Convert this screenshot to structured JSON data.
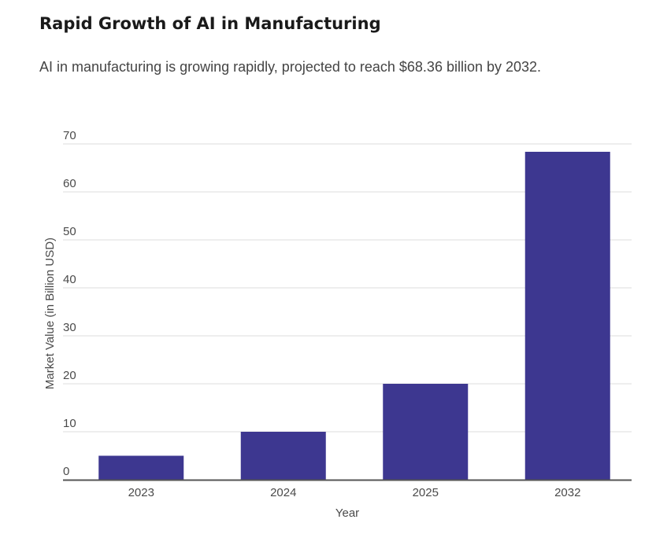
{
  "header": {
    "title": "Rapid Growth of AI in Manufacturing",
    "subtitle": "AI in manufacturing is growing rapidly, projected to reach $68.36 billion by 2032."
  },
  "chart_data": {
    "type": "bar",
    "title": "Rapid Growth of AI in Manufacturing",
    "subtitle": "AI in manufacturing is growing rapidly, projected to reach $68.36 billion by 2032.",
    "categories": [
      "2023",
      "2024",
      "2025",
      "2032"
    ],
    "values": [
      5,
      10,
      20,
      68.36
    ],
    "xlabel": "Year",
    "ylabel": "Market Value (in Billion USD)",
    "ylim": [
      0,
      70
    ],
    "yticks": [
      0,
      10,
      20,
      30,
      40,
      50,
      60,
      70
    ],
    "grid": true,
    "legend": "none",
    "colors": {
      "bar": "#3d3790",
      "grid": "#dddddd",
      "axis": "#555555"
    }
  }
}
